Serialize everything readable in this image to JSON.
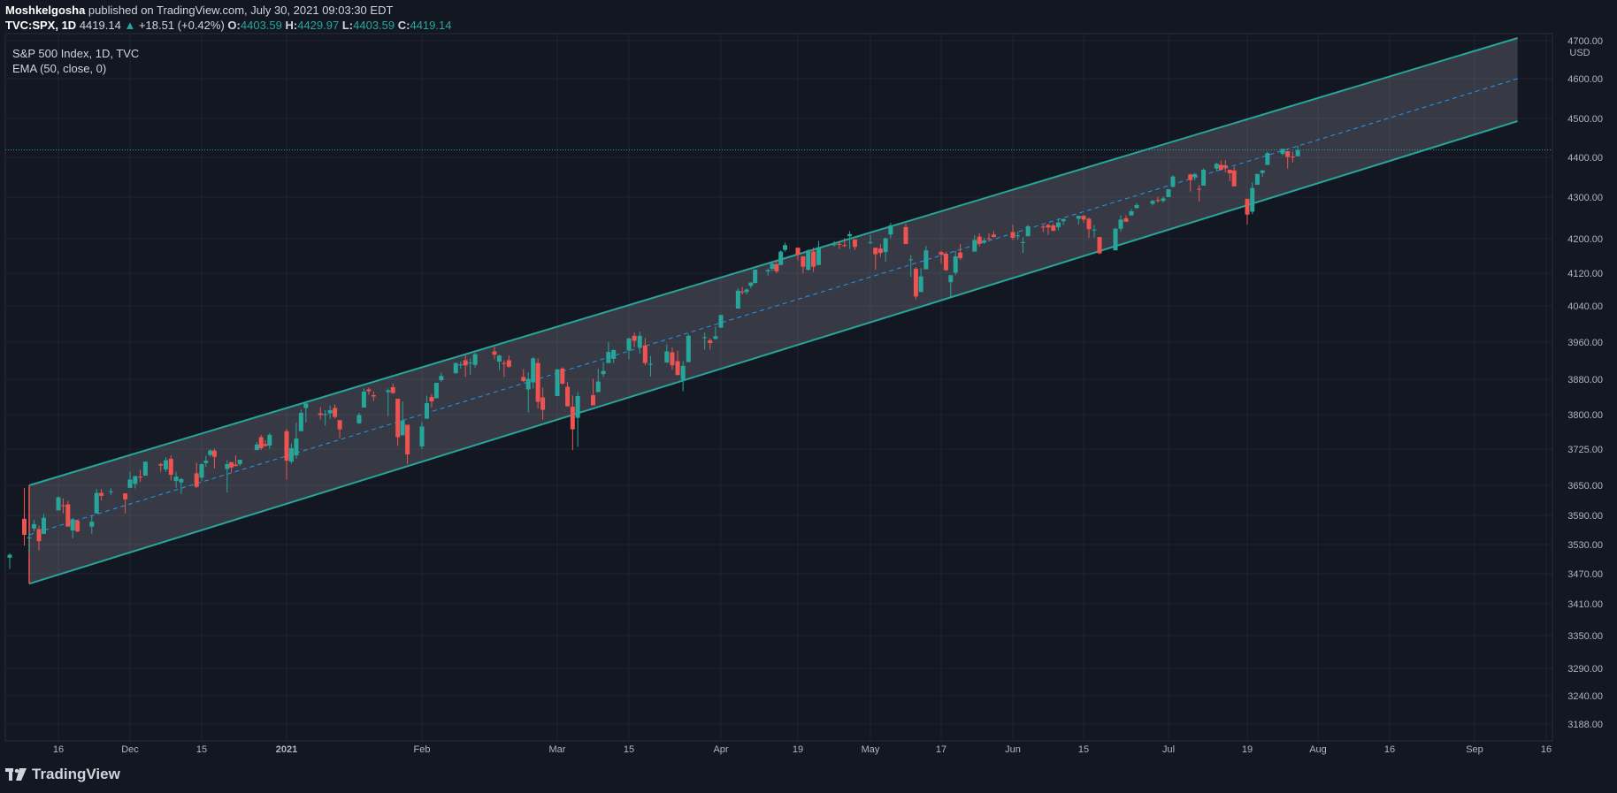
{
  "header": {
    "author": "Moshkelgosha",
    "published_text": "published on TradingView.com, July 30, 2021 09:03:30 EDT",
    "symbol": "TVC:SPX, 1D",
    "last": "4419.14",
    "arrow": "▲",
    "change": "+18.51 (+0.42%)",
    "o_label": "O:",
    "o_val": "4403.59",
    "h_label": "H:",
    "h_val": "4429.97",
    "l_label": "L:",
    "l_val": "4403.59",
    "c_label": "C:",
    "c_val": "4419.14"
  },
  "legend": {
    "title": "S&P 500 Index, 1D, TVC",
    "indicator": "EMA (50, close, 0)"
  },
  "footer": {
    "brand": "TradingView"
  },
  "colors": {
    "up": "#26a69a",
    "down": "#ef5350",
    "channel": "#26a69a",
    "ema": "#2196f3",
    "background": "#131722"
  },
  "chart_data": {
    "type": "candlestick",
    "currency": "USD",
    "last_price": "4419.14",
    "y_ticks": [
      "3188.00",
      "3240.00",
      "3290.00",
      "3350.00",
      "3410.00",
      "3470.00",
      "3530.00",
      "3590.00",
      "3650.00",
      "3725.00",
      "3800.00",
      "3880.00",
      "3960.00",
      "4040.00",
      "4120.00",
      "4200.00",
      "4300.00",
      "4400.00",
      "4500.00",
      "4600.00",
      "4700.00"
    ],
    "x_ticks": [
      "16",
      "Dec",
      "15",
      "2021",
      "Feb",
      "Mar",
      "15",
      "Apr",
      "19",
      "May",
      "17",
      "Jun",
      "15",
      "Jul",
      "19",
      "Aug",
      "16",
      "Sep",
      "16"
    ],
    "channel": {
      "start_date": "2020-11-10",
      "end_date": "2021-09-10",
      "upper": [
        3650,
        4707
      ],
      "lower": [
        3450,
        4493
      ],
      "mid": [
        3550,
        4600
      ]
    },
    "candles": [
      [
        "2020-11-06",
        3503,
        3512,
        3480,
        3509
      ],
      [
        "2020-11-09",
        3583,
        3645,
        3528,
        3550
      ],
      [
        "2020-11-10",
        3543,
        3557,
        3511,
        3545
      ],
      [
        "2020-11-11",
        3563,
        3581,
        3557,
        3572
      ],
      [
        "2020-11-12",
        3562,
        3569,
        3518,
        3537
      ],
      [
        "2020-11-13",
        3552,
        3593,
        3552,
        3585
      ],
      [
        "2020-11-16",
        3600,
        3628,
        3600,
        3626
      ],
      [
        "2020-11-17",
        3610,
        3624,
        3594,
        3609
      ],
      [
        "2020-11-18",
        3612,
        3619,
        3567,
        3567
      ],
      [
        "2020-11-19",
        3559,
        3585,
        3543,
        3582
      ],
      [
        "2020-11-20",
        3579,
        3581,
        3556,
        3557
      ],
      [
        "2020-11-23",
        3567,
        3589,
        3552,
        3577
      ],
      [
        "2020-11-24",
        3594,
        3643,
        3594,
        3635
      ],
      [
        "2020-11-25",
        3635,
        3643,
        3620,
        3629
      ],
      [
        "2020-11-27",
        3638,
        3644,
        3630,
        3638
      ],
      [
        "2020-11-30",
        3634,
        3634,
        3594,
        3622
      ],
      [
        "2020-12-01",
        3645,
        3678,
        3645,
        3662
      ],
      [
        "2020-12-02",
        3653,
        3670,
        3644,
        3669
      ],
      [
        "2020-12-03",
        3668,
        3682,
        3657,
        3666
      ],
      [
        "2020-12-04",
        3670,
        3699,
        3670,
        3699
      ],
      [
        "2020-12-07",
        3694,
        3697,
        3678,
        3691
      ],
      [
        "2020-12-08",
        3683,
        3708,
        3678,
        3702
      ],
      [
        "2020-12-09",
        3705,
        3712,
        3660,
        3672
      ],
      [
        "2020-12-10",
        3659,
        3678,
        3645,
        3668
      ],
      [
        "2020-12-11",
        3656,
        3665,
        3633,
        3663
      ],
      [
        "2020-12-14",
        3675,
        3697,
        3645,
        3647
      ],
      [
        "2020-12-15",
        3666,
        3695,
        3659,
        3694
      ],
      [
        "2020-12-16",
        3696,
        3711,
        3688,
        3701
      ],
      [
        "2020-12-17",
        3713,
        3725,
        3710,
        3722
      ],
      [
        "2020-12-18",
        3722,
        3726,
        3685,
        3709
      ],
      [
        "2020-12-21",
        3684,
        3702,
        3636,
        3694
      ],
      [
        "2020-12-22",
        3698,
        3698,
        3676,
        3687
      ],
      [
        "2020-12-23",
        3693,
        3712,
        3689,
        3690
      ],
      [
        "2020-12-24",
        3694,
        3703,
        3690,
        3703
      ],
      [
        "2020-12-28",
        3723,
        3740,
        3723,
        3735
      ],
      [
        "2020-12-29",
        3751,
        3756,
        3723,
        3727
      ],
      [
        "2020-12-30",
        3736,
        3744,
        3730,
        3732
      ],
      [
        "2020-12-31",
        3733,
        3760,
        3726,
        3756
      ],
      [
        "2021-01-04",
        3764,
        3769,
        3662,
        3701
      ],
      [
        "2021-01-05",
        3699,
        3737,
        3695,
        3727
      ],
      [
        "2021-01-06",
        3712,
        3783,
        3705,
        3748
      ],
      [
        "2021-01-07",
        3764,
        3811,
        3764,
        3804
      ],
      [
        "2021-01-08",
        3815,
        3826,
        3783,
        3825
      ],
      [
        "2021-01-11",
        3803,
        3817,
        3789,
        3799
      ],
      [
        "2021-01-12",
        3801,
        3810,
        3776,
        3801
      ],
      [
        "2021-01-13",
        3803,
        3820,
        3791,
        3810
      ],
      [
        "2021-01-14",
        3815,
        3823,
        3792,
        3795
      ],
      [
        "2021-01-15",
        3788,
        3788,
        3749,
        3768
      ],
      [
        "2021-01-19",
        3781,
        3804,
        3780,
        3799
      ],
      [
        "2021-01-20",
        3816,
        3859,
        3816,
        3852
      ],
      [
        "2021-01-21",
        3857,
        3861,
        3845,
        3853
      ],
      [
        "2021-01-22",
        3844,
        3852,
        3831,
        3841
      ],
      [
        "2021-01-25",
        3851,
        3859,
        3797,
        3855
      ],
      [
        "2021-01-26",
        3862,
        3870,
        3847,
        3849
      ],
      [
        "2021-01-27",
        3836,
        3836,
        3732,
        3751
      ],
      [
        "2021-01-28",
        3755,
        3830,
        3755,
        3787
      ],
      [
        "2021-01-29",
        3778,
        3778,
        3694,
        3714
      ],
      [
        "2021-02-01",
        3731,
        3784,
        3725,
        3774
      ],
      [
        "2021-02-02",
        3791,
        3843,
        3791,
        3826
      ],
      [
        "2021-02-03",
        3840,
        3847,
        3816,
        3830
      ],
      [
        "2021-02-04",
        3837,
        3872,
        3837,
        3872
      ],
      [
        "2021-02-05",
        3878,
        3894,
        3874,
        3887
      ],
      [
        "2021-02-08",
        3893,
        3916,
        3892,
        3915
      ],
      [
        "2021-02-09",
        3910,
        3918,
        3903,
        3912
      ],
      [
        "2021-02-10",
        3921,
        3931,
        3885,
        3910
      ],
      [
        "2021-02-11",
        3916,
        3925,
        3890,
        3916
      ],
      [
        "2021-02-12",
        3911,
        3937,
        3905,
        3934
      ],
      [
        "2021-02-16",
        3940,
        3950,
        3923,
        3933
      ],
      [
        "2021-02-17",
        3918,
        3933,
        3900,
        3931
      ],
      [
        "2021-02-18",
        3915,
        3921,
        3885,
        3913
      ],
      [
        "2021-02-19",
        3921,
        3931,
        3905,
        3907
      ],
      [
        "2021-02-22",
        3885,
        3902,
        3874,
        3876
      ],
      [
        "2021-02-23",
        3857,
        3895,
        3805,
        3881
      ],
      [
        "2021-02-24",
        3873,
        3928,
        3859,
        3925
      ],
      [
        "2021-02-25",
        3915,
        3925,
        3814,
        3829
      ],
      [
        "2021-02-26",
        3839,
        3861,
        3789,
        3811
      ],
      [
        "2021-03-01",
        3842,
        3903,
        3842,
        3901
      ],
      [
        "2021-03-02",
        3903,
        3906,
        3868,
        3870
      ],
      [
        "2021-03-03",
        3863,
        3874,
        3818,
        3819
      ],
      [
        "2021-03-04",
        3818,
        3843,
        3723,
        3768
      ],
      [
        "2021-03-05",
        3793,
        3851,
        3730,
        3842
      ],
      [
        "2021-03-08",
        3844,
        3881,
        3821,
        3821
      ],
      [
        "2021-03-09",
        3851,
        3903,
        3851,
        3875
      ],
      [
        "2021-03-10",
        3891,
        3917,
        3885,
        3898
      ],
      [
        "2021-03-11",
        3915,
        3960,
        3915,
        3939
      ],
      [
        "2021-03-12",
        3924,
        3944,
        3915,
        3943
      ],
      [
        "2021-03-15",
        3942,
        3970,
        3923,
        3968
      ],
      [
        "2021-03-16",
        3974,
        3981,
        3949,
        3963
      ],
      [
        "2021-03-17",
        3949,
        3983,
        3935,
        3974
      ],
      [
        "2021-03-18",
        3953,
        3969,
        3910,
        3915
      ],
      [
        "2021-03-19",
        3913,
        3930,
        3886,
        3913
      ],
      [
        "2021-03-22",
        3916,
        3955,
        3915,
        3940
      ],
      [
        "2021-03-23",
        3938,
        3949,
        3901,
        3910
      ],
      [
        "2021-03-24",
        3919,
        3942,
        3889,
        3889
      ],
      [
        "2021-03-25",
        3879,
        3919,
        3853,
        3909
      ],
      [
        "2021-03-26",
        3917,
        3978,
        3917,
        3974
      ],
      [
        "2021-03-29",
        3969,
        3981,
        3944,
        3971
      ],
      [
        "2021-03-30",
        3964,
        3968,
        3944,
        3958
      ],
      [
        "2021-03-31",
        3967,
        3994,
        3966,
        3973
      ],
      [
        "2021-04-01",
        3992,
        4018,
        3992,
        4020
      ],
      [
        "2021-04-05",
        4034,
        4083,
        4034,
        4077
      ],
      [
        "2021-04-06",
        4075,
        4086,
        4068,
        4073
      ],
      [
        "2021-04-07",
        4074,
        4083,
        4068,
        4080
      ],
      [
        "2021-04-08",
        4089,
        4098,
        4083,
        4097
      ],
      [
        "2021-04-09",
        4096,
        4129,
        4095,
        4128
      ],
      [
        "2021-04-12",
        4124,
        4131,
        4114,
        4127
      ],
      [
        "2021-04-13",
        4130,
        4148,
        4124,
        4142
      ],
      [
        "2021-04-14",
        4141,
        4151,
        4120,
        4124
      ],
      [
        "2021-04-15",
        4139,
        4173,
        4139,
        4170
      ],
      [
        "2021-04-16",
        4174,
        4191,
        4170,
        4185
      ],
      [
        "2021-04-19",
        4179,
        4180,
        4150,
        4163
      ],
      [
        "2021-04-20",
        4159,
        4160,
        4119,
        4135
      ],
      [
        "2021-04-21",
        4128,
        4175,
        4126,
        4173
      ],
      [
        "2021-04-22",
        4170,
        4179,
        4123,
        4135
      ],
      [
        "2021-04-23",
        4139,
        4195,
        4139,
        4180
      ],
      [
        "2021-04-26",
        4185,
        4194,
        4182,
        4187
      ],
      [
        "2021-04-27",
        4188,
        4193,
        4176,
        4187
      ],
      [
        "2021-04-28",
        4185,
        4201,
        4181,
        4183
      ],
      [
        "2021-04-29",
        4206,
        4218,
        4176,
        4211
      ],
      [
        "2021-04-30",
        4198,
        4198,
        4174,
        4181
      ],
      [
        "2021-05-03",
        4191,
        4209,
        4188,
        4192
      ],
      [
        "2021-05-04",
        4179,
        4179,
        4128,
        4164
      ],
      [
        "2021-05-05",
        4177,
        4187,
        4158,
        4167
      ],
      [
        "2021-05-06",
        4169,
        4202,
        4147,
        4201
      ],
      [
        "2021-05-07",
        4210,
        4238,
        4201,
        4232
      ],
      [
        "2021-05-10",
        4228,
        4236,
        4188,
        4188
      ],
      [
        "2021-05-11",
        4150,
        4162,
        4111,
        4152
      ],
      [
        "2021-05-12",
        4130,
        4134,
        4056,
        4063
      ],
      [
        "2021-05-13",
        4074,
        4132,
        4074,
        4112
      ],
      [
        "2021-05-14",
        4129,
        4183,
        4129,
        4173
      ],
      [
        "2021-05-17",
        4169,
        4172,
        4142,
        4163
      ],
      [
        "2021-05-18",
        4165,
        4169,
        4125,
        4127
      ],
      [
        "2021-05-19",
        4098,
        4116,
        4061,
        4115
      ],
      [
        "2021-05-20",
        4121,
        4172,
        4115,
        4159
      ],
      [
        "2021-05-21",
        4168,
        4188,
        4151,
        4155
      ],
      [
        "2021-05-24",
        4170,
        4209,
        4170,
        4197
      ],
      [
        "2021-05-25",
        4205,
        4213,
        4182,
        4188
      ],
      [
        "2021-05-26",
        4191,
        4202,
        4188,
        4196
      ],
      [
        "2021-05-27",
        4201,
        4213,
        4197,
        4200
      ],
      [
        "2021-05-28",
        4210,
        4218,
        4203,
        4204
      ],
      [
        "2021-06-01",
        4216,
        4234,
        4197,
        4202
      ],
      [
        "2021-06-02",
        4207,
        4217,
        4198,
        4208
      ],
      [
        "2021-06-03",
        4191,
        4204,
        4167,
        4192
      ],
      [
        "2021-06-04",
        4206,
        4233,
        4206,
        4230
      ],
      [
        "2021-06-07",
        4229,
        4233,
        4216,
        4227
      ],
      [
        "2021-06-08",
        4233,
        4236,
        4209,
        4227
      ],
      [
        "2021-06-09",
        4232,
        4237,
        4218,
        4219
      ],
      [
        "2021-06-10",
        4228,
        4249,
        4220,
        4239
      ],
      [
        "2021-06-11",
        4242,
        4249,
        4233,
        4247
      ],
      [
        "2021-06-14",
        4248,
        4255,
        4234,
        4255
      ],
      [
        "2021-06-15",
        4255,
        4257,
        4238,
        4246
      ],
      [
        "2021-06-16",
        4248,
        4251,
        4202,
        4223
      ],
      [
        "2021-06-17",
        4220,
        4233,
        4203,
        4222
      ],
      [
        "2021-06-18",
        4204,
        4204,
        4164,
        4166
      ],
      [
        "2021-06-21",
        4173,
        4226,
        4173,
        4224
      ],
      [
        "2021-06-22",
        4224,
        4256,
        4217,
        4246
      ],
      [
        "2021-06-23",
        4249,
        4256,
        4241,
        4241
      ],
      [
        "2021-06-24",
        4256,
        4271,
        4256,
        4266
      ],
      [
        "2021-06-25",
        4274,
        4286,
        4272,
        4281
      ],
      [
        "2021-06-28",
        4284,
        4293,
        4280,
        4291
      ],
      [
        "2021-06-29",
        4293,
        4301,
        4287,
        4291
      ],
      [
        "2021-06-30",
        4291,
        4302,
        4287,
        4297
      ],
      [
        "2021-07-01",
        4300,
        4320,
        4300,
        4320
      ],
      [
        "2021-07-02",
        4326,
        4355,
        4324,
        4352
      ],
      [
        "2021-07-06",
        4357,
        4359,
        4314,
        4343
      ],
      [
        "2021-07-07",
        4351,
        4361,
        4342,
        4358
      ],
      [
        "2021-07-08",
        4321,
        4330,
        4289,
        4320
      ],
      [
        "2021-07-09",
        4329,
        4372,
        4329,
        4369
      ],
      [
        "2021-07-12",
        4372,
        4386,
        4365,
        4384
      ],
      [
        "2021-07-13",
        4381,
        4392,
        4367,
        4369
      ],
      [
        "2021-07-14",
        4380,
        4393,
        4362,
        4374
      ],
      [
        "2021-07-15",
        4369,
        4369,
        4340,
        4360
      ],
      [
        "2021-07-16",
        4367,
        4376,
        4327,
        4327
      ],
      [
        "2021-07-19",
        4296,
        4296,
        4234,
        4258
      ],
      [
        "2021-07-20",
        4265,
        4337,
        4259,
        4323
      ],
      [
        "2021-07-21",
        4331,
        4359,
        4331,
        4358
      ],
      [
        "2021-07-22",
        4361,
        4369,
        4351,
        4367
      ],
      [
        "2021-07-23",
        4381,
        4415,
        4381,
        4411
      ],
      [
        "2021-07-26",
        4409,
        4422,
        4405,
        4422
      ],
      [
        "2021-07-27",
        4416,
        4416,
        4372,
        4401
      ],
      [
        "2021-07-28",
        4402,
        4415,
        4387,
        4400
      ],
      [
        "2021-07-29",
        4403,
        4430,
        4403,
        4419
      ]
    ]
  }
}
